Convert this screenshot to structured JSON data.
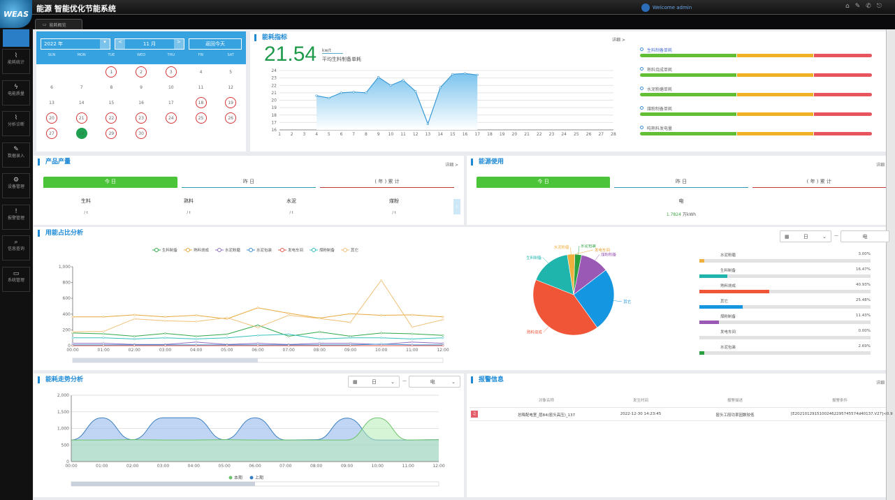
{
  "header": {
    "logo": "WEAS",
    "title": "能源 智能优化节能系统",
    "welcome": "Welcome admin",
    "icons": [
      "home-icon",
      "edit-icon",
      "phone-icon",
      "logout-icon"
    ]
  },
  "tab": {
    "label": "能耗概览"
  },
  "sidebar": {
    "items": [
      {
        "label": "能耗统计",
        "icon": "chart-icon"
      },
      {
        "label": "电能质量",
        "icon": "lightning-icon"
      },
      {
        "label": "分析诊断",
        "icon": "chart-icon"
      },
      {
        "label": "数据录入",
        "icon": "edit-icon"
      },
      {
        "label": "设备管理",
        "icon": "gear-icon"
      },
      {
        "label": "报警管理",
        "icon": "alert-icon"
      },
      {
        "label": "信息查询",
        "icon": "search-icon"
      },
      {
        "label": "系统管理",
        "icon": "monitor-icon"
      }
    ]
  },
  "calendar": {
    "year": "2022 年",
    "month": "11 月",
    "today_btn": "返回今天",
    "prev": "<",
    "next": ">",
    "weekdays": [
      "SUN",
      "MON",
      "TUE",
      "WED",
      "THU",
      "FRI",
      "SAT"
    ],
    "first_weekday": 2,
    "days": 30,
    "marked_days": [
      1,
      2,
      3,
      18,
      19,
      20,
      21,
      22,
      23,
      24,
      25,
      26,
      27,
      29,
      30
    ],
    "today": 28
  },
  "energy_index": {
    "title": "能耗指标",
    "more": "详细 >",
    "value": "21.54",
    "unit": "kw/t",
    "desc": "平均生料制备单耗"
  },
  "energy_index_bars": {
    "colors": [
      "#62bf35",
      "#f0b023",
      "#e8545e"
    ],
    "items": [
      "生料制备单耗",
      "熟料烧成单耗",
      "水泥粉磨单耗",
      "煤粉制备单耗",
      "吨熟料发电量"
    ]
  },
  "product": {
    "title": "产品产量",
    "more": "详细 >",
    "tabs": [
      "今 日",
      "昨 日",
      "( 年 ) 累 计"
    ],
    "items": [
      {
        "name": "生料",
        "unit": "/ t"
      },
      {
        "name": "熟料",
        "unit": "/ t"
      },
      {
        "name": "水泥",
        "unit": "/ t"
      },
      {
        "name": "煤粉",
        "unit": "/ t"
      }
    ]
  },
  "energy_use": {
    "title": "能源使用",
    "more": "详细",
    "tabs": [
      "今 日",
      "昨 日",
      "( 年 ) 累 计"
    ],
    "item": "电",
    "value": "1.7824",
    "unit": "万kWh"
  },
  "usage": {
    "title": "用能占比分析",
    "sel1": "日",
    "sel2": "电",
    "dash": "—"
  },
  "trend": {
    "title": "能耗走势分析",
    "sel1": "日",
    "sel2": "电",
    "dash": "—"
  },
  "alarm": {
    "title": "报警信息",
    "more": "详细",
    "headers": [
      "对象名称",
      "发生时间",
      "报警描述",
      "报警条件"
    ],
    "rows": [
      {
        "name": "总降配电室_层84(窑头高压)_137",
        "time": "2022-12-30 14:23:45",
        "desc": "窑头工段功率因数较低",
        "cond": "[E20210129151002462295745574d40137.V27]<0.9"
      }
    ]
  },
  "chart_data": [
    {
      "type": "area",
      "name": "energy-index-chart",
      "x": [
        1,
        2,
        3,
        4,
        5,
        6,
        7,
        8,
        9,
        10,
        11,
        12,
        13,
        14,
        15,
        16,
        17,
        18,
        19,
        20,
        21,
        22,
        23,
        24,
        25,
        26,
        27,
        28
      ],
      "values": [
        null,
        null,
        null,
        20.6,
        20.3,
        21.0,
        21.1,
        21.0,
        23.1,
        22.0,
        22.7,
        21.2,
        16.8,
        21.7,
        23.5,
        23.6,
        23.4,
        null,
        null,
        null,
        null,
        null,
        null,
        null,
        null,
        null,
        null,
        null
      ],
      "ylim": [
        16,
        24
      ],
      "yticks": [
        16,
        17,
        18,
        19,
        20,
        21,
        22,
        23,
        24
      ],
      "color": "#3a9ad6",
      "grid": true
    },
    {
      "type": "line",
      "name": "usage-line-chart",
      "categories": [
        "00:00",
        "01:00",
        "02:00",
        "03:00",
        "04:00",
        "05:00",
        "06:00",
        "07:00",
        "08:00",
        "09:00",
        "10:00",
        "11:00",
        "12:00"
      ],
      "ylim": [
        0,
        1000
      ],
      "yticks": [
        "0",
        "200",
        "400",
        "600",
        "800",
        "1,000"
      ],
      "legend": "top",
      "series": [
        {
          "name": "生料制备",
          "color": "#2fa84a",
          "values": [
            160,
            150,
            120,
            155,
            120,
            145,
            260,
            120,
            175,
            120,
            160,
            150,
            130
          ]
        },
        {
          "name": "熟料烧成",
          "color": "#e8a93a",
          "values": [
            365,
            365,
            390,
            365,
            385,
            340,
            480,
            410,
            350,
            405,
            385,
            390,
            365
          ]
        },
        {
          "name": "水泥粉磨",
          "color": "#8e6fc0",
          "values": [
            30,
            30,
            15,
            15,
            45,
            15,
            30,
            15,
            30,
            30,
            15,
            45,
            30
          ]
        },
        {
          "name": "水泥包装",
          "color": "#3a8ed6",
          "values": [
            10,
            10,
            10,
            10,
            10,
            10,
            10,
            10,
            10,
            10,
            20,
            10,
            10
          ]
        },
        {
          "name": "发电车间",
          "color": "#e05a4a",
          "values": [
            0,
            0,
            0,
            0,
            0,
            0,
            0,
            0,
            0,
            0,
            0,
            0,
            0
          ]
        },
        {
          "name": "煤粉制备",
          "color": "#35c0c0",
          "values": [
            100,
            100,
            85,
            100,
            85,
            100,
            130,
            145,
            85,
            100,
            100,
            85,
            100
          ]
        },
        {
          "name": "其它",
          "color": "#f0c078",
          "values": [
            175,
            180,
            340,
            315,
            305,
            355,
            230,
            385,
            345,
            295,
            830,
            235,
            330
          ]
        }
      ]
    },
    {
      "type": "pie",
      "name": "usage-pie-chart",
      "slices": [
        {
          "name": "水泥包装",
          "value": 2.69,
          "color": "#2aa040"
        },
        {
          "name": "煤粉制备",
          "value": 11.43,
          "color": "#9b59b6"
        },
        {
          "name": "其它",
          "value": 25.48,
          "color": "#1596e0"
        },
        {
          "name": "熟料烧成",
          "value": 40.93,
          "color": "#f05538"
        },
        {
          "name": "生料制备",
          "value": 16.47,
          "color": "#1fb5ad"
        },
        {
          "name": "水泥粉磨",
          "value": 3.0,
          "color": "#f0b040"
        },
        {
          "name": "发电车间",
          "value": 0.0,
          "color": "#e8a030"
        }
      ]
    },
    {
      "type": "bar",
      "name": "usage-percent-bars",
      "items": [
        {
          "name": "水泥粉磨",
          "value": 3.0,
          "label": "3.00%",
          "color": "#f0b040"
        },
        {
          "name": "生料制备",
          "value": 16.47,
          "label": "16.47%",
          "color": "#1fb5ad"
        },
        {
          "name": "熟料烧成",
          "value": 40.93,
          "label": "40.93%",
          "color": "#f05538"
        },
        {
          "name": "其它",
          "value": 25.48,
          "label": "25.48%",
          "color": "#1596e0"
        },
        {
          "name": "煤粉制备",
          "value": 11.43,
          "label": "11.43%",
          "color": "#9b59b6"
        },
        {
          "name": "发电车间",
          "value": 0.0,
          "label": "0.00%",
          "color": "#e8a030"
        },
        {
          "name": "水泥包装",
          "value": 2.69,
          "label": "2.69%",
          "color": "#2aa040"
        }
      ]
    },
    {
      "type": "area",
      "name": "trend-chart",
      "categories": [
        "00:00",
        "01:00",
        "02:00",
        "03:00",
        "04:00",
        "05:00",
        "06:00",
        "07:00",
        "08:00",
        "09:00",
        "10:00",
        "11:00",
        "12:00"
      ],
      "ylim": [
        0,
        2000
      ],
      "yticks": [
        "0",
        "500",
        "1,000",
        "1,500",
        "2,000"
      ],
      "legend": "bottom",
      "series": [
        {
          "name": "本期",
          "color": "#6cc36c",
          "values": [
            650,
            650,
            660,
            650,
            650,
            660,
            650,
            650,
            650,
            650,
            1320,
            650,
            660
          ]
        },
        {
          "name": "上期",
          "color": "#3a7fc0",
          "values": [
            650,
            1320,
            660,
            1320,
            1320,
            660,
            1320,
            650,
            660,
            1310,
            650,
            650,
            660
          ]
        }
      ]
    }
  ]
}
